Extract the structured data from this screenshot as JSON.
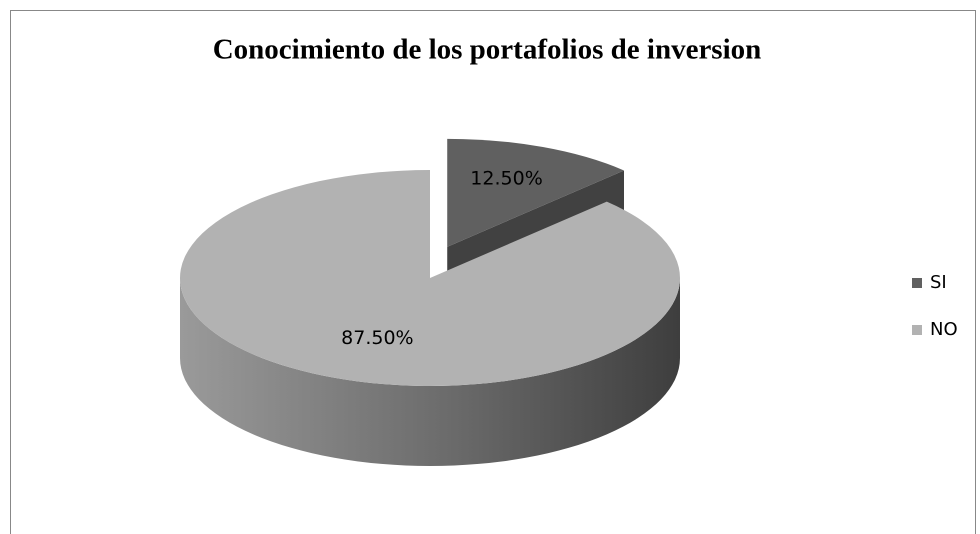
{
  "chart_data": {
    "type": "pie",
    "title": "Conocimiento de los portafolios de inversion",
    "categories": [
      "SI",
      "NO"
    ],
    "values": [
      12.5,
      87.5
    ],
    "value_labels": [
      "12.50%",
      "87.50%"
    ],
    "colors": [
      "#606060",
      "#b2b2b2"
    ],
    "legend": "right"
  }
}
